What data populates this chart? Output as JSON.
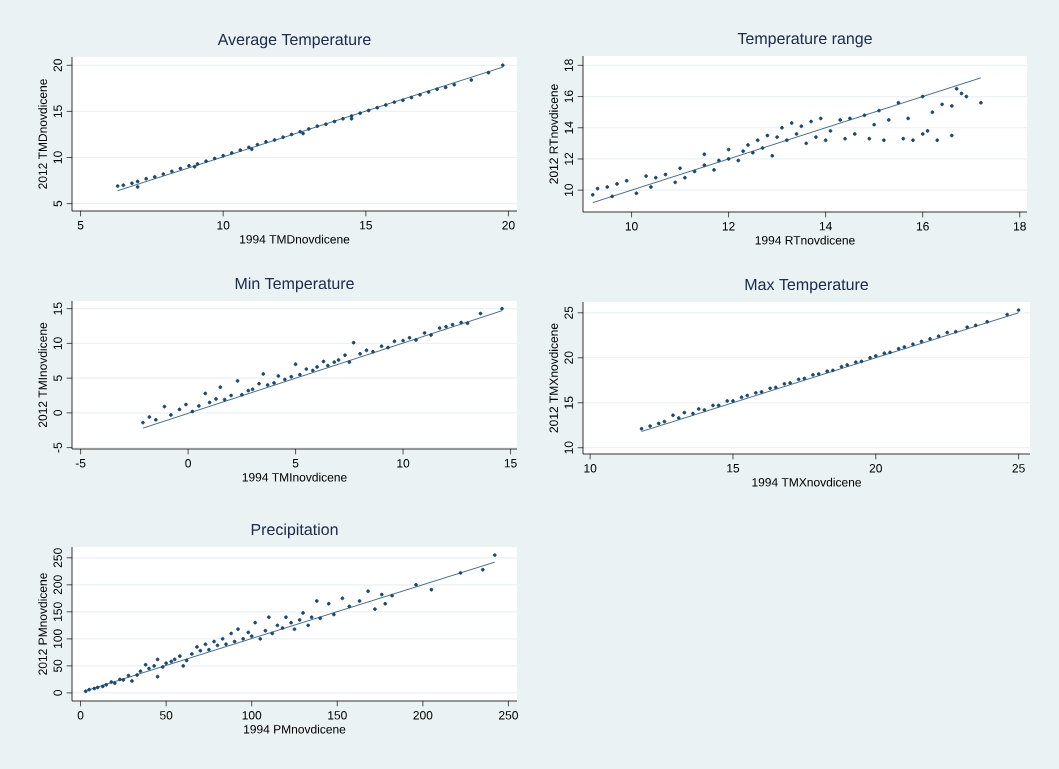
{
  "chart_data": [
    {
      "type": "scatter",
      "title": "Average Temperature",
      "xlabel": "1994 TMDnovdicene",
      "ylabel": "2012 TMDnovdicene",
      "xlim": [
        4.7,
        20.3
      ],
      "ylim": [
        4.2,
        20.9
      ],
      "xticks": [
        5,
        10,
        15,
        20
      ],
      "yticks": [
        5,
        10,
        15,
        20
      ],
      "grid": "y",
      "marker": "circle",
      "series": [
        {
          "type": "scatter",
          "color": "#1a476f",
          "x": [
            6.3,
            6.5,
            6.8,
            7.0,
            7.0,
            7.3,
            7.6,
            7.9,
            8.2,
            8.5,
            8.8,
            9.0,
            9.1,
            9.4,
            9.7,
            10.0,
            10.3,
            10.6,
            10.9,
            11.0,
            11.2,
            11.5,
            11.8,
            12.1,
            12.4,
            12.7,
            12.8,
            13.0,
            13.3,
            13.6,
            13.9,
            14.2,
            14.5,
            14.5,
            14.8,
            15.1,
            15.4,
            15.7,
            16.0,
            16.3,
            16.6,
            16.9,
            17.2,
            17.5,
            17.8,
            18.1,
            18.7,
            19.3,
            19.8
          ],
          "values": [
            6.9,
            7.0,
            7.2,
            7.4,
            6.8,
            7.7,
            7.9,
            8.2,
            8.5,
            8.8,
            9.1,
            9.0,
            9.3,
            9.6,
            9.9,
            10.2,
            10.5,
            10.8,
            11.1,
            10.9,
            11.4,
            11.7,
            11.9,
            12.2,
            12.5,
            12.8,
            12.6,
            13.1,
            13.4,
            13.6,
            13.9,
            14.2,
            14.5,
            14.2,
            14.8,
            15.1,
            15.4,
            15.7,
            16.0,
            16.2,
            16.5,
            16.8,
            17.1,
            17.4,
            17.6,
            17.9,
            18.4,
            19.2,
            20.0
          ]
        },
        {
          "type": "line",
          "marker": "none",
          "color": "#1a476f",
          "x": [
            6.3,
            19.8
          ],
          "values": [
            6.4,
            19.8
          ]
        }
      ]
    },
    {
      "type": "scatter",
      "title": "Temperature range",
      "xlabel": "1994 RTnovdicene",
      "ylabel": "2012 RTnovdicene",
      "xlim": [
        9.0,
        18.15
      ],
      "ylim": [
        8.6,
        18.6
      ],
      "xticks": [
        10,
        12,
        14,
        16,
        18
      ],
      "yticks": [
        10,
        12,
        14,
        16,
        18
      ],
      "grid": "y",
      "marker": "circle",
      "series": [
        {
          "type": "scatter",
          "color": "#1a476f",
          "x": [
            9.2,
            9.3,
            9.5,
            9.6,
            9.7,
            9.9,
            10.1,
            10.3,
            10.4,
            10.5,
            10.7,
            10.9,
            11.0,
            11.1,
            11.3,
            11.5,
            11.5,
            11.7,
            11.8,
            12.0,
            12.0,
            12.2,
            12.3,
            12.4,
            12.5,
            12.6,
            12.7,
            12.8,
            12.9,
            13.0,
            13.1,
            13.2,
            13.3,
            13.4,
            13.5,
            13.6,
            13.7,
            13.8,
            13.9,
            14.0,
            14.1,
            14.3,
            14.4,
            14.5,
            14.6,
            14.8,
            14.9,
            15.0,
            15.1,
            15.2,
            15.3,
            15.5,
            15.6,
            15.7,
            15.8,
            16.0,
            16.0,
            16.1,
            16.2,
            16.3,
            16.4,
            16.6,
            16.6,
            16.7,
            16.8,
            16.9,
            17.2
          ],
          "values": [
            9.7,
            10.1,
            10.2,
            9.6,
            10.4,
            10.6,
            9.8,
            10.9,
            10.2,
            10.8,
            11.0,
            10.5,
            11.4,
            10.8,
            11.2,
            11.6,
            12.3,
            11.3,
            11.9,
            12.0,
            12.6,
            11.9,
            12.5,
            12.9,
            12.4,
            13.2,
            12.7,
            13.5,
            12.2,
            13.4,
            14.0,
            13.2,
            14.3,
            13.6,
            14.1,
            13.0,
            14.4,
            13.4,
            14.6,
            13.2,
            13.8,
            14.5,
            13.3,
            14.6,
            13.6,
            14.8,
            13.3,
            14.2,
            15.1,
            13.2,
            14.5,
            15.6,
            13.3,
            14.6,
            13.2,
            13.6,
            16.0,
            13.8,
            15.0,
            13.2,
            15.5,
            13.5,
            15.4,
            16.5,
            16.2,
            16.0,
            15.6
          ]
        },
        {
          "type": "line",
          "marker": "none",
          "color": "#1a476f",
          "x": [
            9.2,
            17.2
          ],
          "values": [
            9.2,
            17.2
          ]
        }
      ]
    },
    {
      "type": "scatter",
      "title": "Min Temperature",
      "xlabel": "1994 TMInovdicene",
      "ylabel": "2012 TMInovdicene",
      "xlim": [
        -5.4,
        15.3
      ],
      "ylim": [
        -5.2,
        16.1
      ],
      "xticks": [
        -5,
        0,
        5,
        10,
        15
      ],
      "yticks": [
        -5,
        0,
        5,
        10,
        15
      ],
      "grid": "y",
      "marker": "circle",
      "series": [
        {
          "type": "scatter",
          "color": "#1a476f",
          "x": [
            -2.1,
            -1.8,
            -1.5,
            -1.1,
            -0.8,
            -0.4,
            -0.1,
            0.2,
            0.5,
            0.8,
            1.0,
            1.3,
            1.5,
            1.7,
            2.0,
            2.3,
            2.5,
            2.8,
            3.0,
            3.3,
            3.5,
            3.7,
            4.0,
            4.2,
            4.5,
            4.8,
            5.0,
            5.2,
            5.5,
            5.8,
            6.0,
            6.3,
            6.5,
            6.8,
            7.0,
            7.3,
            7.5,
            7.7,
            8.0,
            8.3,
            8.6,
            9.0,
            9.3,
            9.6,
            10.0,
            10.3,
            10.6,
            11.0,
            11.3,
            11.7,
            12.0,
            12.3,
            12.7,
            13.0,
            13.6,
            14.6
          ],
          "values": [
            -1.4,
            -0.6,
            -1.0,
            0.9,
            -0.3,
            0.5,
            1.2,
            0.2,
            1.0,
            2.8,
            1.5,
            2.0,
            3.7,
            1.9,
            2.5,
            4.6,
            2.6,
            3.2,
            3.4,
            4.2,
            5.6,
            4.0,
            4.3,
            5.3,
            4.8,
            5.2,
            7.0,
            5.5,
            6.3,
            6.1,
            6.6,
            7.4,
            6.8,
            7.3,
            7.6,
            8.3,
            7.3,
            10.1,
            8.5,
            9.0,
            8.8,
            9.6,
            9.4,
            10.3,
            10.4,
            10.8,
            10.5,
            11.5,
            11.2,
            12.2,
            12.4,
            12.7,
            13.0,
            12.9,
            14.3,
            15.0
          ]
        },
        {
          "type": "line",
          "marker": "none",
          "color": "#1a476f",
          "x": [
            -2.1,
            14.6
          ],
          "values": [
            -2.2,
            14.7
          ]
        }
      ]
    },
    {
      "type": "scatter",
      "title": "Max Temperature",
      "xlabel": "1994 TMXnovdicene",
      "ylabel": "2012 TMXnovdicene",
      "xlim": [
        9.75,
        25.4
      ],
      "ylim": [
        9.3,
        26.2
      ],
      "xticks": [
        10,
        15,
        20,
        25
      ],
      "yticks": [
        10,
        15,
        20,
        25
      ],
      "grid": "y",
      "marker": "circle",
      "series": [
        {
          "type": "scatter",
          "color": "#1a476f",
          "x": [
            11.8,
            12.1,
            12.4,
            12.6,
            12.9,
            13.1,
            13.3,
            13.6,
            13.8,
            14.0,
            14.3,
            14.5,
            14.8,
            15.0,
            15.3,
            15.5,
            15.8,
            16.0,
            16.3,
            16.5,
            16.8,
            17.0,
            17.3,
            17.5,
            17.8,
            18.0,
            18.3,
            18.5,
            18.8,
            19.0,
            19.3,
            19.5,
            19.8,
            20.0,
            20.3,
            20.5,
            20.8,
            21.0,
            21.3,
            21.6,
            21.9,
            22.2,
            22.5,
            22.8,
            23.2,
            23.5,
            23.9,
            24.6,
            25.0
          ],
          "values": [
            12.1,
            12.4,
            12.7,
            12.9,
            13.6,
            13.3,
            13.9,
            13.8,
            14.3,
            14.2,
            14.7,
            14.7,
            15.2,
            15.2,
            15.6,
            15.8,
            16.1,
            16.2,
            16.6,
            16.7,
            17.1,
            17.2,
            17.6,
            17.7,
            18.1,
            18.2,
            18.5,
            18.6,
            19.0,
            19.2,
            19.5,
            19.6,
            20.0,
            20.2,
            20.5,
            20.6,
            21.0,
            21.2,
            21.5,
            21.8,
            22.1,
            22.4,
            22.8,
            22.9,
            23.4,
            23.6,
            24.0,
            24.8,
            25.3
          ]
        },
        {
          "type": "line",
          "marker": "none",
          "color": "#1a476f",
          "x": [
            11.8,
            25.0
          ],
          "values": [
            11.8,
            25.0
          ]
        }
      ]
    },
    {
      "type": "scatter",
      "title": "Precipitation",
      "xlabel": "1994 PMnovdicene",
      "ylabel": "2012 PMnovdicene",
      "xlim": [
        -5,
        255
      ],
      "ylim": [
        -15,
        270
      ],
      "xticks": [
        0,
        50,
        100,
        150,
        200,
        250
      ],
      "yticks": [
        0,
        50,
        100,
        150,
        200,
        250
      ],
      "grid": "y",
      "marker": "circle",
      "series": [
        {
          "type": "scatter",
          "color": "#1a476f",
          "x": [
            3,
            5,
            8,
            10,
            13,
            15,
            18,
            20,
            23,
            25,
            28,
            30,
            33,
            35,
            38,
            40,
            43,
            45,
            45,
            48,
            50,
            53,
            55,
            58,
            60,
            62,
            65,
            68,
            70,
            73,
            75,
            78,
            80,
            83,
            85,
            88,
            90,
            92,
            95,
            98,
            100,
            102,
            105,
            108,
            110,
            112,
            115,
            118,
            120,
            123,
            125,
            128,
            130,
            133,
            135,
            138,
            140,
            145,
            148,
            153,
            157,
            163,
            168,
            172,
            176,
            178,
            182,
            196,
            205,
            222,
            235,
            242
          ],
          "values": [
            3,
            6,
            8,
            10,
            12,
            15,
            20,
            18,
            25,
            24,
            32,
            22,
            33,
            40,
            52,
            45,
            50,
            30,
            62,
            48,
            55,
            58,
            62,
            68,
            50,
            60,
            72,
            85,
            78,
            90,
            80,
            95,
            88,
            100,
            90,
            110,
            95,
            118,
            100,
            112,
            105,
            130,
            100,
            115,
            140,
            110,
            125,
            120,
            140,
            130,
            118,
            135,
            148,
            125,
            140,
            170,
            138,
            165,
            145,
            175,
            160,
            170,
            188,
            155,
            182,
            165,
            180,
            200,
            191,
            222,
            228,
            255
          ]
        },
        {
          "type": "line",
          "marker": "none",
          "color": "#1a476f",
          "x": [
            3,
            242
          ],
          "values": [
            4,
            242
          ]
        }
      ]
    }
  ]
}
